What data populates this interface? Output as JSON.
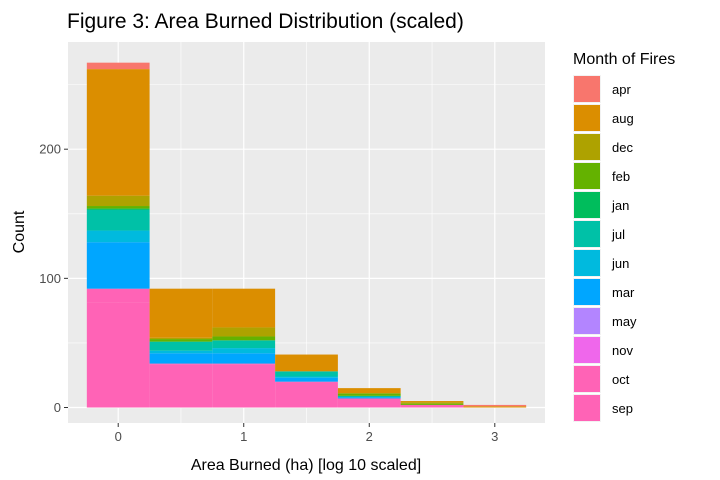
{
  "chart_data": {
    "type": "bar",
    "subtype": "stacked-histogram",
    "title": "Figure 3: Area Burned Distribution (scaled)",
    "xlabel": "Area Burned (ha) [log 10 scaled]",
    "ylabel": "Count",
    "xlim": [
      -0.4,
      3.4
    ],
    "ylim": [
      -12,
      283
    ],
    "x_ticks": [
      0,
      1,
      2,
      3
    ],
    "y_ticks": [
      0,
      100,
      200
    ],
    "x_tick_labels": [
      "0",
      "1",
      "2",
      "3"
    ],
    "y_tick_labels": [
      "0",
      "100",
      "200"
    ],
    "grid": true,
    "bin_width": 0.5,
    "bins": [
      0,
      0.5,
      1,
      1.5,
      2,
      2.5,
      3
    ],
    "legend_title": "Month of Fires",
    "legend_position": "right",
    "series": [
      {
        "name": "apr",
        "color": "#F8766D",
        "values": [
          5,
          0,
          0,
          0,
          0,
          0,
          1
        ]
      },
      {
        "name": "aug",
        "color": "#DB8E00",
        "values": [
          98,
          38,
          30,
          13,
          4,
          1,
          1
        ]
      },
      {
        "name": "dec",
        "color": "#AEA200",
        "values": [
          8,
          1,
          7,
          0,
          0,
          1,
          0
        ]
      },
      {
        "name": "feb",
        "color": "#64B200",
        "values": [
          2,
          2,
          3,
          0,
          2,
          1,
          0
        ]
      },
      {
        "name": "jan",
        "color": "#00BD5C",
        "values": [
          1,
          0,
          0,
          0,
          0,
          0,
          0
        ]
      },
      {
        "name": "jul",
        "color": "#00C1A7",
        "values": [
          16,
          7,
          6,
          4,
          1,
          0,
          0
        ]
      },
      {
        "name": "jun",
        "color": "#00BADE",
        "values": [
          9,
          2,
          4,
          1,
          0,
          0,
          0
        ]
      },
      {
        "name": "mar",
        "color": "#00A6FF",
        "values": [
          36,
          8,
          8,
          3,
          1,
          0,
          0
        ]
      },
      {
        "name": "may",
        "color": "#B385FF",
        "values": [
          0,
          0,
          0,
          0,
          0,
          0,
          0
        ]
      },
      {
        "name": "nov",
        "color": "#EF67EB",
        "values": [
          0,
          0,
          0,
          0,
          0,
          0,
          0
        ]
      },
      {
        "name": "oct",
        "color": "#FF63B6",
        "values": [
          11,
          1,
          1,
          1,
          0,
          0,
          0
        ]
      },
      {
        "name": "sep",
        "color": "#FF63B6",
        "values": [
          81,
          33,
          33,
          19,
          7,
          2,
          0
        ]
      }
    ]
  }
}
